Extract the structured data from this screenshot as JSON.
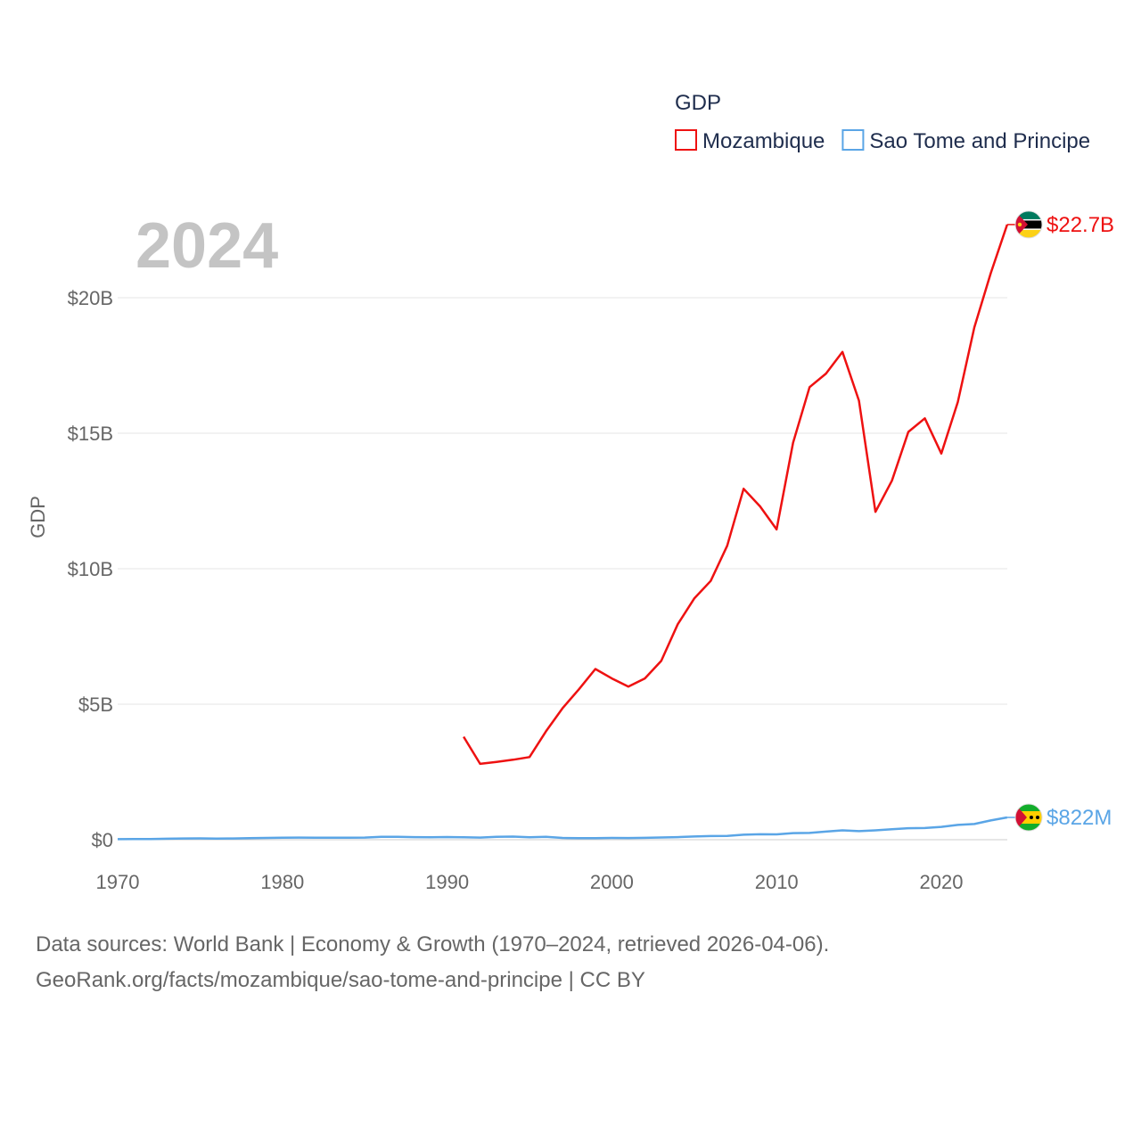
{
  "chart_data": {
    "type": "line",
    "title": "GDP",
    "year_label": "2024",
    "xlabel": "",
    "ylabel": "GDP",
    "xlim": [
      1970,
      2024
    ],
    "ylim": [
      0,
      23000000000
    ],
    "x_ticks": [
      1970,
      1980,
      1990,
      2000,
      2010,
      2020
    ],
    "y_ticks": [
      {
        "value": 0,
        "label": "$0"
      },
      {
        "value": 5000000000,
        "label": "$5B"
      },
      {
        "value": 10000000000,
        "label": "$10B"
      },
      {
        "value": 15000000000,
        "label": "$15B"
      },
      {
        "value": 20000000000,
        "label": "$20B"
      }
    ],
    "grid": true,
    "legend_position": "top-right",
    "series": [
      {
        "name": "Mozambique",
        "color": "#ee1111",
        "flag_icon": "mozambique-flag-icon",
        "end_label": "$22.7B",
        "x": [
          1991,
          1992,
          1993,
          1994,
          1995,
          1996,
          1997,
          1998,
          1999,
          2000,
          2001,
          2002,
          2003,
          2004,
          2005,
          2006,
          2007,
          2008,
          2009,
          2010,
          2011,
          2012,
          2013,
          2014,
          2015,
          2016,
          2017,
          2018,
          2019,
          2020,
          2021,
          2022,
          2023,
          2024
        ],
        "values": [
          3800000000.0,
          2800000000.0,
          2870000000.0,
          2950000000.0,
          3050000000.0,
          4000000000.0,
          4850000000.0,
          5550000000.0,
          6300000000.0,
          5950000000.0,
          5650000000.0,
          5950000000.0,
          6600000000.0,
          7950000000.0,
          8900000000.0,
          9550000000.0,
          10850000000.0,
          12950000000.0,
          12300000000.0,
          11450000000.0,
          14650000000.0,
          16700000000.0,
          17200000000.0,
          18000000000.0,
          16200000000.0,
          12100000000.0,
          13250000000.0,
          15050000000.0,
          15550000000.0,
          14250000000.0,
          16150000000.0,
          18900000000.0,
          20900000000.0,
          22700000000.0
        ]
      },
      {
        "name": "Sao Tome and Principe",
        "color": "#5aa5e6",
        "flag_icon": "sao-tome-and-principe-flag-icon",
        "end_label": "$822M",
        "x": [
          1970,
          1971,
          1972,
          1973,
          1974,
          1975,
          1976,
          1977,
          1978,
          1979,
          1980,
          1981,
          1982,
          1983,
          1984,
          1985,
          1986,
          1987,
          1988,
          1989,
          1990,
          1991,
          1992,
          1993,
          1994,
          1995,
          1996,
          1997,
          1998,
          1999,
          2000,
          2001,
          2002,
          2003,
          2004,
          2005,
          2006,
          2007,
          2008,
          2009,
          2010,
          2011,
          2012,
          2013,
          2014,
          2015,
          2016,
          2017,
          2018,
          2019,
          2020,
          2021,
          2022,
          2023,
          2024
        ],
        "values": [
          20000000.0,
          22000000.0,
          26000000.0,
          35000000.0,
          45000000.0,
          48000000.0,
          42000000.0,
          46000000.0,
          55000000.0,
          65000000.0,
          75000000.0,
          78000000.0,
          76000000.0,
          71000000.0,
          75000000.0,
          80000000.0,
          110000000.0,
          105000000.0,
          95000000.0,
          90000000.0,
          100000000.0,
          93000000.0,
          79000000.0,
          110000000.0,
          115000000.0,
          90000000.0,
          110000000.0,
          65000000.0,
          55000000.0,
          60000000.0,
          65000000.0,
          62000000.0,
          68000000.0,
          82000000.0,
          95000000.0,
          120000000.0,
          135000000.0,
          140000000.0,
          185000000.0,
          200000000.0,
          197000000.0,
          245000000.0,
          250000000.0,
          300000000.0,
          345000000.0,
          317000000.0,
          345000000.0,
          385000000.0,
          425000000.0,
          430000000.0,
          475000000.0,
          546000000.0,
          580000000.0,
          710000000.0,
          822000000.0
        ]
      }
    ]
  },
  "footer": {
    "line1": "Data sources: World Bank | Economy & Growth (1970–2024, retrieved 2026-04-06).",
    "line2": "GeoRank.org/facts/mozambique/sao-tome-and-principe | CC BY"
  }
}
